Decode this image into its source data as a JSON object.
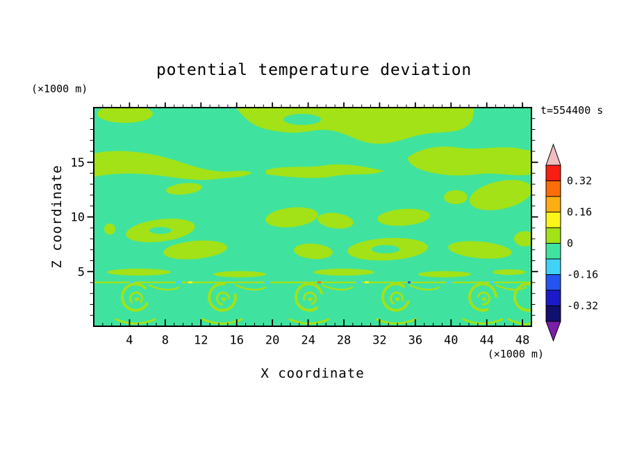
{
  "figure": {
    "title": "potential temperature deviation",
    "timestamp": "t=554400 s",
    "y_axis_unit": "(×1000 m)",
    "x_axis_unit": "(×1000 m)",
    "xlabel": "X coordinate",
    "ylabel": "Z coordinate"
  },
  "chart_data": {
    "type": "heatmap",
    "subtype": "filled-contour",
    "title": "potential temperature deviation",
    "time_label": "t=554400 s",
    "xlabel": "X coordinate (×1000 m)",
    "ylabel": "Z coordinate (×1000 m)",
    "x_range": [
      0,
      49
    ],
    "z_range": [
      0,
      20
    ],
    "x_ticks": [
      4,
      8,
      12,
      16,
      20,
      24,
      28,
      32,
      36,
      40,
      44,
      48
    ],
    "z_ticks": [
      5,
      10,
      15
    ],
    "x_minor_tick_step": 1,
    "z_minor_tick_step": 1,
    "contour_interval": 0.08,
    "value_range_shown": [
      -0.4,
      0.4
    ],
    "colorbar": {
      "labels": [
        "0.32",
        "0.16",
        "0",
        "-0.16",
        "-0.32"
      ],
      "label_boundary_indices": [
        1,
        3,
        5,
        7,
        9
      ],
      "cell_colors_top_to_bottom": [
        "#F81E14",
        "#FB6E07",
        "#FCAE12",
        "#FBF51A",
        "#A2E217",
        "#3FE39F",
        "#41D3F5",
        "#2455F0",
        "#1A1AC8",
        "#10106E"
      ],
      "cell_bounds_top_to_bottom": [
        [
          0.32,
          0.4
        ],
        [
          0.24,
          0.32
        ],
        [
          0.16,
          0.24
        ],
        [
          0.08,
          0.16
        ],
        [
          0,
          0.08
        ],
        [
          -0.08,
          0
        ],
        [
          -0.16,
          -0.08
        ],
        [
          -0.24,
          -0.16
        ],
        [
          -0.32,
          -0.24
        ],
        [
          -0.4,
          -0.32
        ]
      ],
      "arrow_top_color": "#F0BDC1",
      "arrow_bottom_color": "#7A1FA8"
    },
    "field_colors": {
      "background_band": "#3FE39F",
      "background_band_range": [
        -0.08,
        0
      ],
      "patch_band": "#A2E217",
      "patch_band_range": [
        0,
        0.08
      ],
      "speck_cyan": "#41D3F5",
      "speck_yellow": "#FBF51A",
      "speck_orange": "#FB6E07",
      "speck_blue": "#2455F0"
    },
    "features": {
      "description": "Field mostly within ±0.08: slightly-negative green background with slightly-positive yellow-green patches; thin shear interface near z=4 (×1000 m) with a row of billow/vortex roll structures below it and tiny ±0.16–0.32 extrema along the interface."
    }
  }
}
